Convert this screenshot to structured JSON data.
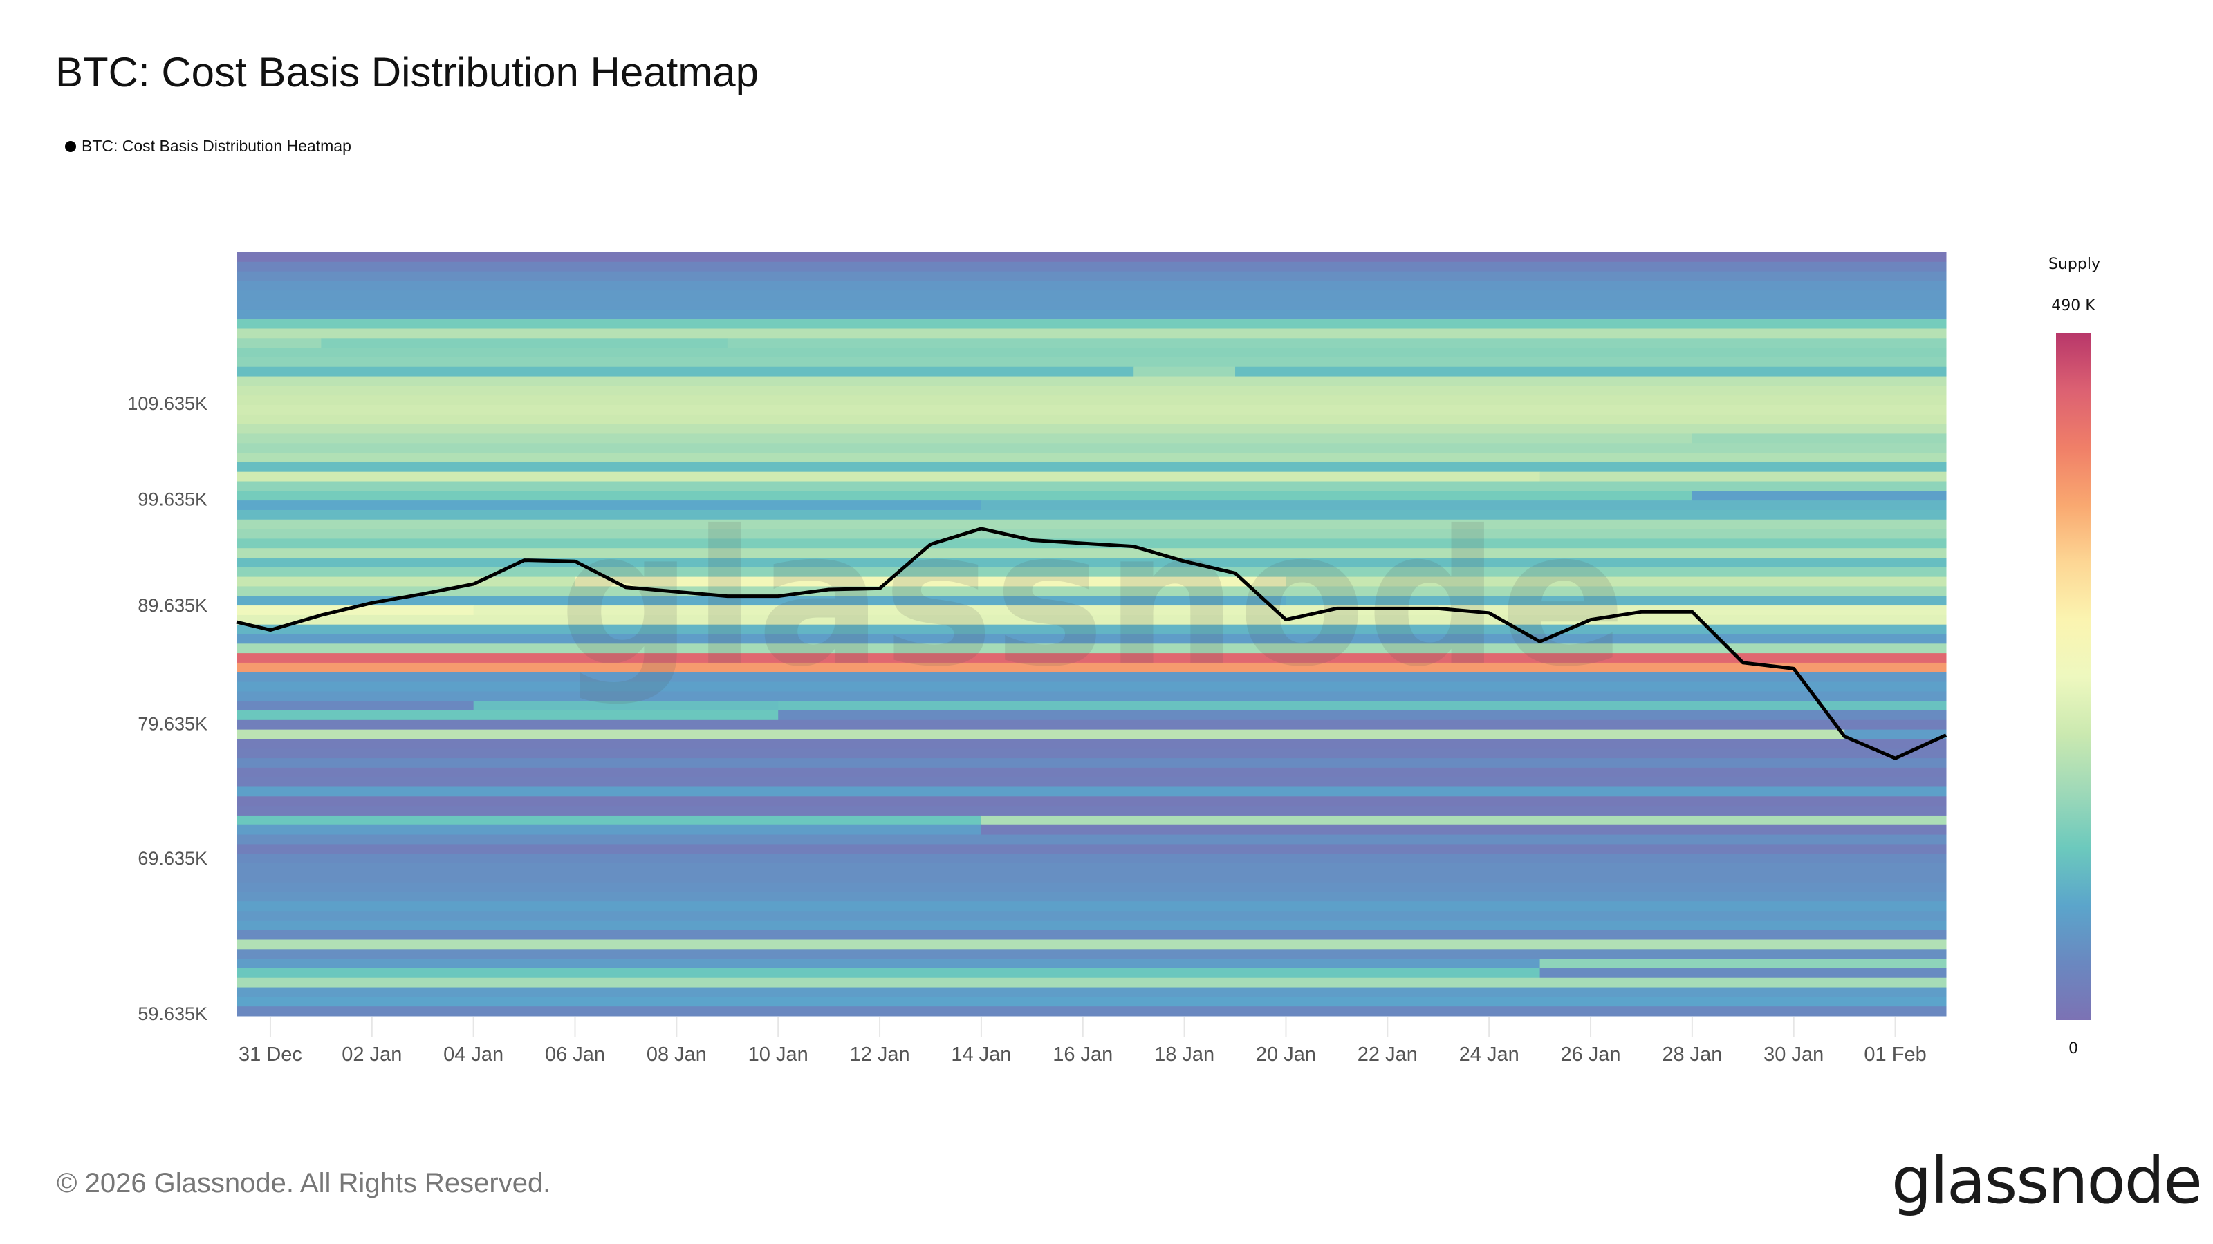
{
  "title": "BTC: Cost Basis Distribution Heatmap",
  "legend": {
    "label": "BTC: Cost Basis Distribution Heatmap",
    "color": "#000000"
  },
  "footer": "© 2026 Glassnode. All Rights Reserved.",
  "logo": "glassnode",
  "watermark": "glassnode",
  "colorbar": {
    "title": "Supply",
    "max_label": "490 K",
    "min_label": "0",
    "stops": [
      "#7c72b4",
      "#6a88c0",
      "#5ba5cb",
      "#6cc9bd",
      "#9fd9b8",
      "#cbe9b0",
      "#eef8bf",
      "#fbf4b0",
      "#fdd694",
      "#f9a870",
      "#f07f68",
      "#dc6172",
      "#b8376a"
    ]
  },
  "chart_data": {
    "type": "heatmap",
    "title": "BTC: Cost Basis Distribution Heatmap",
    "y_scale": "log",
    "ylim": [
      59470,
      127400
    ],
    "xlim": [
      "2025-12-30T08:00",
      "2026-02-02"
    ],
    "yticks": [
      {
        "value": 59635,
        "label": "59.635K"
      },
      {
        "value": 69635,
        "label": "69.635K"
      },
      {
        "value": 79635,
        "label": "79.635K"
      },
      {
        "value": 89635,
        "label": "89.635K"
      },
      {
        "value": 99635,
        "label": "99.635K"
      },
      {
        "value": 109635,
        "label": "109.635K"
      }
    ],
    "xticks": [
      {
        "date": "2025-12-31",
        "label": "31 Dec"
      },
      {
        "date": "2026-01-02",
        "label": "02 Jan"
      },
      {
        "date": "2026-01-04",
        "label": "04 Jan"
      },
      {
        "date": "2026-01-06",
        "label": "06 Jan"
      },
      {
        "date": "2026-01-08",
        "label": "08 Jan"
      },
      {
        "date": "2026-01-10",
        "label": "10 Jan"
      },
      {
        "date": "2026-01-12",
        "label": "12 Jan"
      },
      {
        "date": "2026-01-14",
        "label": "14 Jan"
      },
      {
        "date": "2026-01-16",
        "label": "16 Jan"
      },
      {
        "date": "2026-01-18",
        "label": "18 Jan"
      },
      {
        "date": "2026-01-20",
        "label": "20 Jan"
      },
      {
        "date": "2026-01-22",
        "label": "22 Jan"
      },
      {
        "date": "2026-01-24",
        "label": "24 Jan"
      },
      {
        "date": "2026-01-26",
        "label": "26 Jan"
      },
      {
        "date": "2026-01-28",
        "label": "28 Jan"
      },
      {
        "date": "2026-01-30",
        "label": "30 Jan"
      },
      {
        "date": "2026-02-01",
        "label": "01 Feb"
      }
    ],
    "supply_range_k": [
      0,
      490
    ],
    "bands_supply_k_top_to_bottom": [
      {
        "s": 10
      },
      {
        "s": 35
      },
      {
        "s": 50
      },
      {
        "s": 62
      },
      {
        "s": 66
      },
      {
        "s": 66
      },
      {
        "s": 72
      },
      {
        "s": 130
      },
      {
        "s": 185
      },
      {
        "s": 160,
        "c": [
          [
            "2026-01-01",
            140
          ],
          [
            "2026-01-09",
            150
          ]
        ]
      },
      {
        "s": 145
      },
      {
        "s": 150
      },
      {
        "s": 110,
        "c": [
          [
            "2026-01-17",
            160
          ],
          [
            "2026-01-19",
            110
          ]
        ]
      },
      {
        "s": 190
      },
      {
        "s": 200
      },
      {
        "s": 205
      },
      {
        "s": 210
      },
      {
        "s": 205
      },
      {
        "s": 190
      },
      {
        "s": 175,
        "c": [
          [
            "2026-01-28",
            160
          ]
        ]
      },
      {
        "s": 165
      },
      {
        "s": 180
      },
      {
        "s": 110
      },
      {
        "s": 210,
        "c": [
          [
            "2026-01-25",
            195
          ]
        ]
      },
      {
        "s": 150
      },
      {
        "s": 130,
        "c": [
          [
            "2026-01-28",
            75
          ]
        ]
      },
      {
        "s": 85,
        "c": [
          [
            "2026-01-14",
            100
          ]
        ]
      },
      {
        "s": 105
      },
      {
        "s": 170
      },
      {
        "s": 160
      },
      {
        "s": 135
      },
      {
        "s": 180
      },
      {
        "s": 110
      },
      {
        "s": 150
      },
      {
        "s": 200,
        "c": [
          [
            "2026-01-06",
            260
          ],
          [
            "2026-01-20",
            200
          ]
        ]
      },
      {
        "s": 170
      },
      {
        "s": 90,
        "c": [
          [
            "2026-01-20",
            100
          ]
        ]
      },
      {
        "s": 250,
        "c": [
          [
            "2026-01-04",
            235
          ]
        ]
      },
      {
        "s": 230
      },
      {
        "s": 100
      },
      {
        "s": 70
      },
      {
        "s": 170
      },
      {
        "s": 440
      },
      {
        "s": 380
      },
      {
        "s": 65
      },
      {
        "s": 75
      },
      {
        "s": 65
      },
      {
        "s": 40,
        "c": [
          [
            "2026-01-04",
            110
          ],
          [
            "2026-01-10",
            115
          ]
        ]
      },
      {
        "s": 120,
        "c": [
          [
            "2026-01-10",
            45
          ]
        ]
      },
      {
        "s": 25
      },
      {
        "s": 190,
        "c": [
          [
            "2026-01-31",
            70
          ]
        ]
      },
      {
        "s": 20
      },
      {
        "s": 25
      },
      {
        "s": 45
      },
      {
        "s": 20
      },
      {
        "s": 25
      },
      {
        "s": 75
      },
      {
        "s": 15
      },
      {
        "s": 20
      },
      {
        "s": 120,
        "c": [
          [
            "2026-01-14",
            175
          ]
        ]
      },
      {
        "s": 70,
        "c": [
          [
            "2026-01-14",
            20
          ]
        ]
      },
      {
        "s": 50
      },
      {
        "s": 25
      },
      {
        "s": 45
      },
      {
        "s": 50
      },
      {
        "s": 50
      },
      {
        "s": 55
      },
      {
        "s": 60
      },
      {
        "s": 75
      },
      {
        "s": 65
      },
      {
        "s": 75
      },
      {
        "s": 45
      },
      {
        "s": 180
      },
      {
        "s": 50
      },
      {
        "s": 70,
        "c": [
          [
            "2026-01-25",
            150
          ]
        ]
      },
      {
        "s": 120,
        "c": [
          [
            "2026-01-25",
            45
          ]
        ]
      },
      {
        "s": 170
      },
      {
        "s": 70
      },
      {
        "s": 80
      },
      {
        "s": 40
      }
    ],
    "price_line": {
      "name": "BTC: Cost Basis Distribution Heatmap",
      "color": "#000000",
      "points": [
        [
          "2025-12-30T08:00",
          88100
        ],
        [
          "2025-12-31",
          87400
        ],
        [
          "2026-01-01",
          88700
        ],
        [
          "2026-01-02",
          89800
        ],
        [
          "2026-01-03",
          90600
        ],
        [
          "2026-01-04",
          91500
        ],
        [
          "2026-01-05",
          93700
        ],
        [
          "2026-01-06",
          93600
        ],
        [
          "2026-01-07",
          91200
        ],
        [
          "2026-01-08",
          90800
        ],
        [
          "2026-01-09",
          90400
        ],
        [
          "2026-01-10",
          90400
        ],
        [
          "2026-01-11",
          91000
        ],
        [
          "2026-01-12",
          91100
        ],
        [
          "2026-01-13",
          95200
        ],
        [
          "2026-01-14",
          96700
        ],
        [
          "2026-01-15",
          95600
        ],
        [
          "2026-01-16",
          95300
        ],
        [
          "2026-01-17",
          95000
        ],
        [
          "2026-01-18",
          93600
        ],
        [
          "2026-01-19",
          92500
        ],
        [
          "2026-01-20",
          88300
        ],
        [
          "2026-01-21",
          89300
        ],
        [
          "2026-01-22",
          89300
        ],
        [
          "2026-01-23",
          89300
        ],
        [
          "2026-01-24",
          88900
        ],
        [
          "2026-01-25",
          86400
        ],
        [
          "2026-01-26",
          88300
        ],
        [
          "2026-01-27",
          89000
        ],
        [
          "2026-01-28",
          89000
        ],
        [
          "2026-01-29",
          84600
        ],
        [
          "2026-01-30",
          84100
        ],
        [
          "2026-01-31",
          78600
        ],
        [
          "2026-02-01",
          76900
        ],
        [
          "2026-02-02",
          78700
        ]
      ]
    }
  }
}
